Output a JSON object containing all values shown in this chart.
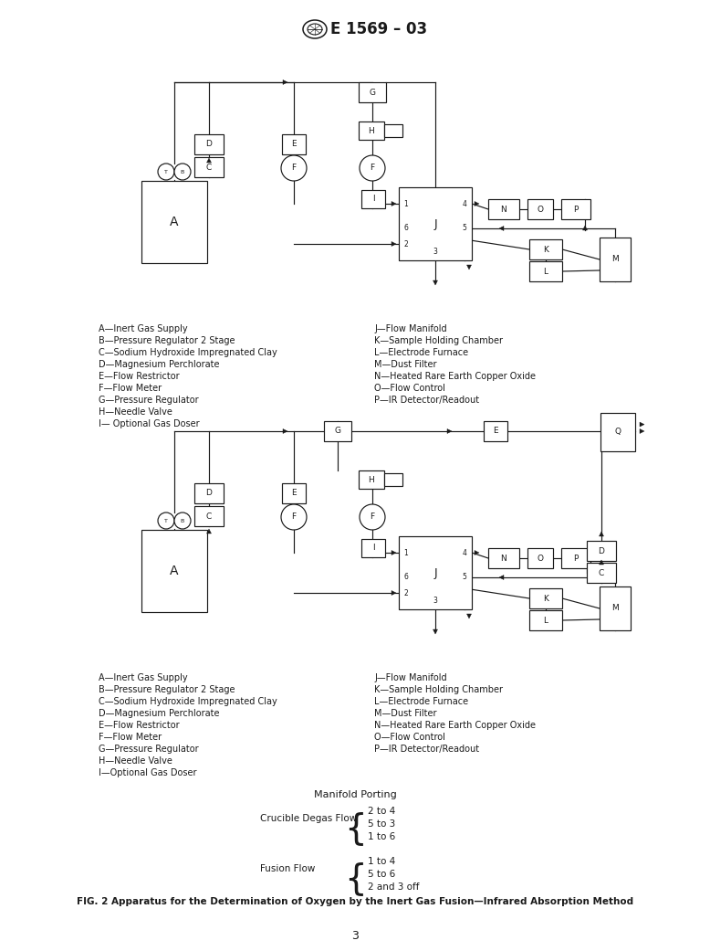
{
  "title": "E 1569 – 03",
  "fig_caption": "FIG. 2 Apparatus for the Determination of Oxygen by the Inert Gas Fusion—Infrared Absorption Method",
  "page_number": "3",
  "legend1_left": [
    "A—Inert Gas Supply",
    "B—Pressure Regulator 2 Stage",
    "C—Sodium Hydroxide Impregnated Clay",
    "D—Magnesium Perchlorate",
    "E—Flow Restrictor",
    "F—Flow Meter",
    "G—Pressure Regulator",
    "H—Needle Valve",
    "I— Optional Gas Doser"
  ],
  "legend1_right": [
    "J—Flow Manifold",
    "K—Sample Holding Chamber",
    "L—Electrode Furnace",
    "M—Dust Filter",
    "N—Heated Rare Earth Copper Oxide",
    "O—Flow Control",
    "P—IR Detector/Readout"
  ],
  "legend2_left": [
    "A—Inert Gas Supply",
    "B—Pressure Regulator 2 Stage",
    "C—Sodium Hydroxide Impregnated Clay",
    "D—Magnesium Perchlorate",
    "E—Flow Restrictor",
    "F—Flow Meter",
    "G—Pressure Regulator",
    "H—Needle Valve",
    "I—Optional Gas Doser"
  ],
  "legend2_right": [
    "J—Flow Manifold",
    "K—Sample Holding Chamber",
    "L—Electrode Furnace",
    "M—Dust Filter",
    "N—Heated Rare Earth Copper Oxide",
    "O—Flow Control",
    "P—IR Detector/Readout"
  ],
  "manifold_title": "Manifold Porting",
  "crucible_label": "Crucible Degas Flow",
  "fusion_label": "Fusion Flow",
  "crucible_lines": [
    "2 to 4",
    "5 to 3",
    "1 to 6"
  ],
  "fusion_lines": [
    "1 to 4",
    "5 to 6",
    "2 and 3 off"
  ],
  "bg_color": "#ffffff",
  "line_color": "#1a1a1a"
}
